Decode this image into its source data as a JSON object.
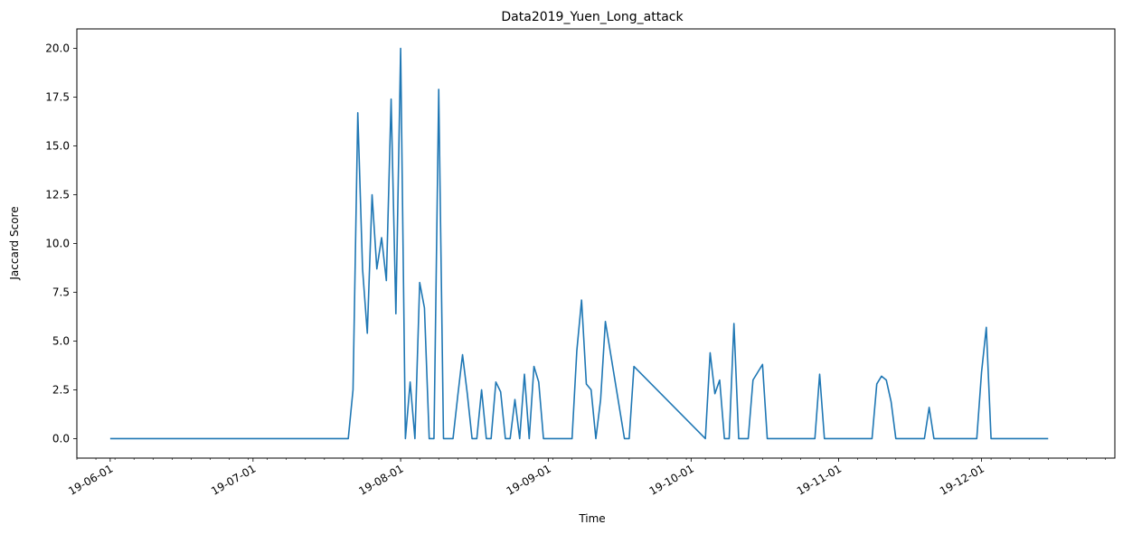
{
  "chart_data": {
    "type": "line",
    "title": "Data2019_Yuen_Long_attack",
    "xlabel": "Time",
    "ylabel": "Jaccard Score",
    "x_axis_type": "date",
    "xlim": [
      "2019-05-25",
      "2019-12-29"
    ],
    "ylim": [
      -1.0,
      21.0
    ],
    "y_ticks": [
      0.0,
      2.5,
      5.0,
      7.5,
      10.0,
      12.5,
      15.0,
      17.5,
      20.0
    ],
    "y_tick_labels": [
      "0.0",
      "2.5",
      "5.0",
      "7.5",
      "10.0",
      "12.5",
      "15.0",
      "17.5",
      "20.0"
    ],
    "x_ticks": [
      "2019-06-01",
      "2019-07-01",
      "2019-08-01",
      "2019-09-01",
      "2019-10-01",
      "2019-11-01",
      "2019-12-01"
    ],
    "x_tick_labels": [
      "19-06-01",
      "19-07-01",
      "19-08-01",
      "19-09-01",
      "19-10-01",
      "19-11-01",
      "19-12-01"
    ],
    "grid": false,
    "line_color": "#1f77b4",
    "series": [
      {
        "x": [
          "2019-06-01",
          "2019-07-21",
          "2019-07-22",
          "2019-07-23",
          "2019-07-24",
          "2019-07-25",
          "2019-07-26",
          "2019-07-27",
          "2019-07-28",
          "2019-07-29",
          "2019-07-30",
          "2019-07-31",
          "2019-08-01",
          "2019-08-02",
          "2019-08-03",
          "2019-08-04",
          "2019-08-05",
          "2019-08-06",
          "2019-08-07",
          "2019-08-08",
          "2019-08-09",
          "2019-08-10",
          "2019-08-11",
          "2019-08-12",
          "2019-08-13",
          "2019-08-14",
          "2019-08-15",
          "2019-08-16",
          "2019-08-17",
          "2019-08-18",
          "2019-08-19",
          "2019-08-20",
          "2019-08-21",
          "2019-08-22",
          "2019-08-23",
          "2019-08-24",
          "2019-08-25",
          "2019-08-26",
          "2019-08-27",
          "2019-08-28",
          "2019-08-29",
          "2019-08-30",
          "2019-08-31",
          "2019-09-06",
          "2019-09-07",
          "2019-09-08",
          "2019-09-09",
          "2019-09-10",
          "2019-09-11",
          "2019-09-12",
          "2019-09-13",
          "2019-09-17",
          "2019-09-18",
          "2019-09-19",
          "2019-10-04",
          "2019-10-05",
          "2019-10-06",
          "2019-10-07",
          "2019-10-08",
          "2019-10-09",
          "2019-10-10",
          "2019-10-11",
          "2019-10-12",
          "2019-10-13",
          "2019-10-14",
          "2019-10-15",
          "2019-10-16",
          "2019-10-17",
          "2019-10-18",
          "2019-10-19",
          "2019-10-20",
          "2019-10-27",
          "2019-10-28",
          "2019-10-29",
          "2019-11-08",
          "2019-11-09",
          "2019-11-10",
          "2019-11-11",
          "2019-11-12",
          "2019-11-13",
          "2019-11-19",
          "2019-11-20",
          "2019-11-21",
          "2019-11-30",
          "2019-12-01",
          "2019-12-02",
          "2019-12-03",
          "2019-12-15"
        ],
        "y": [
          0,
          0,
          2.5,
          16.7,
          8.7,
          5.4,
          12.5,
          8.7,
          10.3,
          8.1,
          17.4,
          6.4,
          20.0,
          0,
          2.9,
          0,
          8.0,
          6.7,
          0,
          0,
          17.9,
          0,
          0,
          0,
          2.2,
          4.3,
          2.3,
          0,
          0,
          2.5,
          0,
          0,
          2.9,
          2.4,
          0,
          0,
          2.0,
          0,
          3.3,
          0,
          3.7,
          2.9,
          0,
          0,
          4.5,
          7.1,
          2.8,
          2.5,
          0,
          2.0,
          6.0,
          0,
          0,
          3.7,
          0,
          4.4,
          2.3,
          3.0,
          0,
          0,
          5.9,
          0,
          0,
          0,
          3.0,
          3.4,
          3.8,
          0,
          0,
          0,
          0,
          0,
          3.3,
          0,
          0,
          2.8,
          3.2,
          3.0,
          1.9,
          0,
          0,
          1.6,
          0,
          0,
          3.4,
          5.7,
          0,
          0
        ]
      }
    ]
  }
}
